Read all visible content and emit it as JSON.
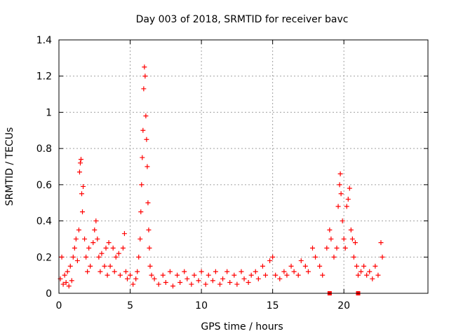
{
  "chart_data": {
    "type": "scatter",
    "title": "Day 003 of 2018, SRMTID for receiver bavc",
    "xlabel": "GPS time / hours",
    "ylabel": "SRMTID / TECUs",
    "xlim": [
      0,
      25.9
    ],
    "ylim": [
      0,
      1.4
    ],
    "x_ticks": [
      0,
      5,
      10,
      15,
      20
    ],
    "y_ticks": [
      0,
      0.2,
      0.4,
      0.6,
      0.8,
      1,
      1.2,
      1.4
    ],
    "grid": true,
    "marker": "plus",
    "color": "#ff0000",
    "square_markers": [
      {
        "x": 19.0,
        "y": 0.0
      },
      {
        "x": 21.0,
        "y": 0.0
      }
    ],
    "series": [
      {
        "name": "SRMTID",
        "points": [
          [
            0.1,
            0.08
          ],
          [
            0.2,
            0.2
          ],
          [
            0.3,
            0.05
          ],
          [
            0.4,
            0.1
          ],
          [
            0.5,
            0.06
          ],
          [
            0.6,
            0.12
          ],
          [
            0.7,
            0.04
          ],
          [
            0.8,
            0.15
          ],
          [
            0.9,
            0.07
          ],
          [
            1.0,
            0.2
          ],
          [
            1.1,
            0.25
          ],
          [
            1.2,
            0.3
          ],
          [
            1.3,
            0.18
          ],
          [
            1.4,
            0.35
          ],
          [
            1.5,
            0.72
          ],
          [
            1.55,
            0.74
          ],
          [
            1.45,
            0.67
          ],
          [
            1.6,
            0.55
          ],
          [
            1.7,
            0.59
          ],
          [
            1.65,
            0.45
          ],
          [
            1.8,
            0.3
          ],
          [
            1.9,
            0.2
          ],
          [
            2.0,
            0.12
          ],
          [
            2.1,
            0.25
          ],
          [
            2.2,
            0.15
          ],
          [
            2.4,
            0.28
          ],
          [
            2.5,
            0.35
          ],
          [
            2.6,
            0.4
          ],
          [
            2.7,
            0.3
          ],
          [
            2.8,
            0.2
          ],
          [
            2.9,
            0.12
          ],
          [
            3.0,
            0.22
          ],
          [
            3.2,
            0.15
          ],
          [
            3.3,
            0.25
          ],
          [
            3.4,
            0.1
          ],
          [
            3.5,
            0.28
          ],
          [
            3.6,
            0.15
          ],
          [
            3.8,
            0.25
          ],
          [
            3.9,
            0.12
          ],
          [
            4.0,
            0.2
          ],
          [
            4.2,
            0.22
          ],
          [
            4.3,
            0.1
          ],
          [
            4.5,
            0.25
          ],
          [
            4.6,
            0.33
          ],
          [
            4.7,
            0.12
          ],
          [
            4.8,
            0.08
          ],
          [
            5.0,
            0.1
          ],
          [
            5.2,
            0.05
          ],
          [
            5.4,
            0.08
          ],
          [
            5.5,
            0.12
          ],
          [
            5.6,
            0.2
          ],
          [
            5.7,
            0.3
          ],
          [
            5.75,
            0.45
          ],
          [
            5.8,
            0.6
          ],
          [
            5.85,
            0.75
          ],
          [
            5.9,
            0.9
          ],
          [
            5.95,
            1.13
          ],
          [
            6.0,
            1.25
          ],
          [
            6.05,
            1.2
          ],
          [
            6.1,
            0.98
          ],
          [
            6.15,
            0.85
          ],
          [
            6.2,
            0.7
          ],
          [
            6.25,
            0.5
          ],
          [
            6.3,
            0.35
          ],
          [
            6.35,
            0.25
          ],
          [
            6.4,
            0.15
          ],
          [
            6.5,
            0.1
          ],
          [
            6.7,
            0.08
          ],
          [
            7.0,
            0.05
          ],
          [
            7.3,
            0.1
          ],
          [
            7.5,
            0.06
          ],
          [
            7.8,
            0.12
          ],
          [
            8.0,
            0.04
          ],
          [
            8.3,
            0.1
          ],
          [
            8.5,
            0.06
          ],
          [
            8.8,
            0.12
          ],
          [
            9.0,
            0.08
          ],
          [
            9.3,
            0.05
          ],
          [
            9.5,
            0.1
          ],
          [
            9.8,
            0.07
          ],
          [
            10.0,
            0.12
          ],
          [
            10.3,
            0.05
          ],
          [
            10.5,
            0.1
          ],
          [
            10.8,
            0.07
          ],
          [
            11.0,
            0.12
          ],
          [
            11.3,
            0.05
          ],
          [
            11.5,
            0.08
          ],
          [
            11.8,
            0.12
          ],
          [
            12.0,
            0.06
          ],
          [
            12.3,
            0.1
          ],
          [
            12.5,
            0.05
          ],
          [
            12.8,
            0.12
          ],
          [
            13.0,
            0.08
          ],
          [
            13.3,
            0.06
          ],
          [
            13.5,
            0.1
          ],
          [
            13.8,
            0.12
          ],
          [
            14.0,
            0.08
          ],
          [
            14.3,
            0.15
          ],
          [
            14.5,
            0.1
          ],
          [
            14.8,
            0.18
          ],
          [
            15.0,
            0.2
          ],
          [
            15.2,
            0.1
          ],
          [
            15.5,
            0.08
          ],
          [
            15.8,
            0.12
          ],
          [
            16.0,
            0.1
          ],
          [
            16.3,
            0.15
          ],
          [
            16.5,
            0.12
          ],
          [
            16.8,
            0.1
          ],
          [
            17.0,
            0.18
          ],
          [
            17.3,
            0.15
          ],
          [
            17.5,
            0.12
          ],
          [
            17.8,
            0.25
          ],
          [
            18.0,
            0.2
          ],
          [
            18.3,
            0.15
          ],
          [
            18.5,
            0.1
          ],
          [
            18.8,
            0.25
          ],
          [
            19.0,
            0.35
          ],
          [
            19.1,
            0.3
          ],
          [
            19.3,
            0.2
          ],
          [
            19.5,
            0.25
          ],
          [
            19.6,
            0.48
          ],
          [
            19.7,
            0.6
          ],
          [
            19.75,
            0.66
          ],
          [
            19.8,
            0.55
          ],
          [
            19.9,
            0.4
          ],
          [
            20.0,
            0.3
          ],
          [
            20.1,
            0.25
          ],
          [
            20.2,
            0.48
          ],
          [
            20.3,
            0.52
          ],
          [
            20.4,
            0.58
          ],
          [
            20.5,
            0.35
          ],
          [
            20.6,
            0.3
          ],
          [
            20.7,
            0.2
          ],
          [
            20.8,
            0.28
          ],
          [
            20.9,
            0.15
          ],
          [
            21.0,
            0.1
          ],
          [
            21.2,
            0.12
          ],
          [
            21.4,
            0.15
          ],
          [
            21.6,
            0.1
          ],
          [
            21.8,
            0.12
          ],
          [
            22.0,
            0.08
          ],
          [
            22.2,
            0.15
          ],
          [
            22.4,
            0.1
          ],
          [
            22.6,
            0.28
          ],
          [
            22.7,
            0.2
          ]
        ]
      }
    ]
  }
}
